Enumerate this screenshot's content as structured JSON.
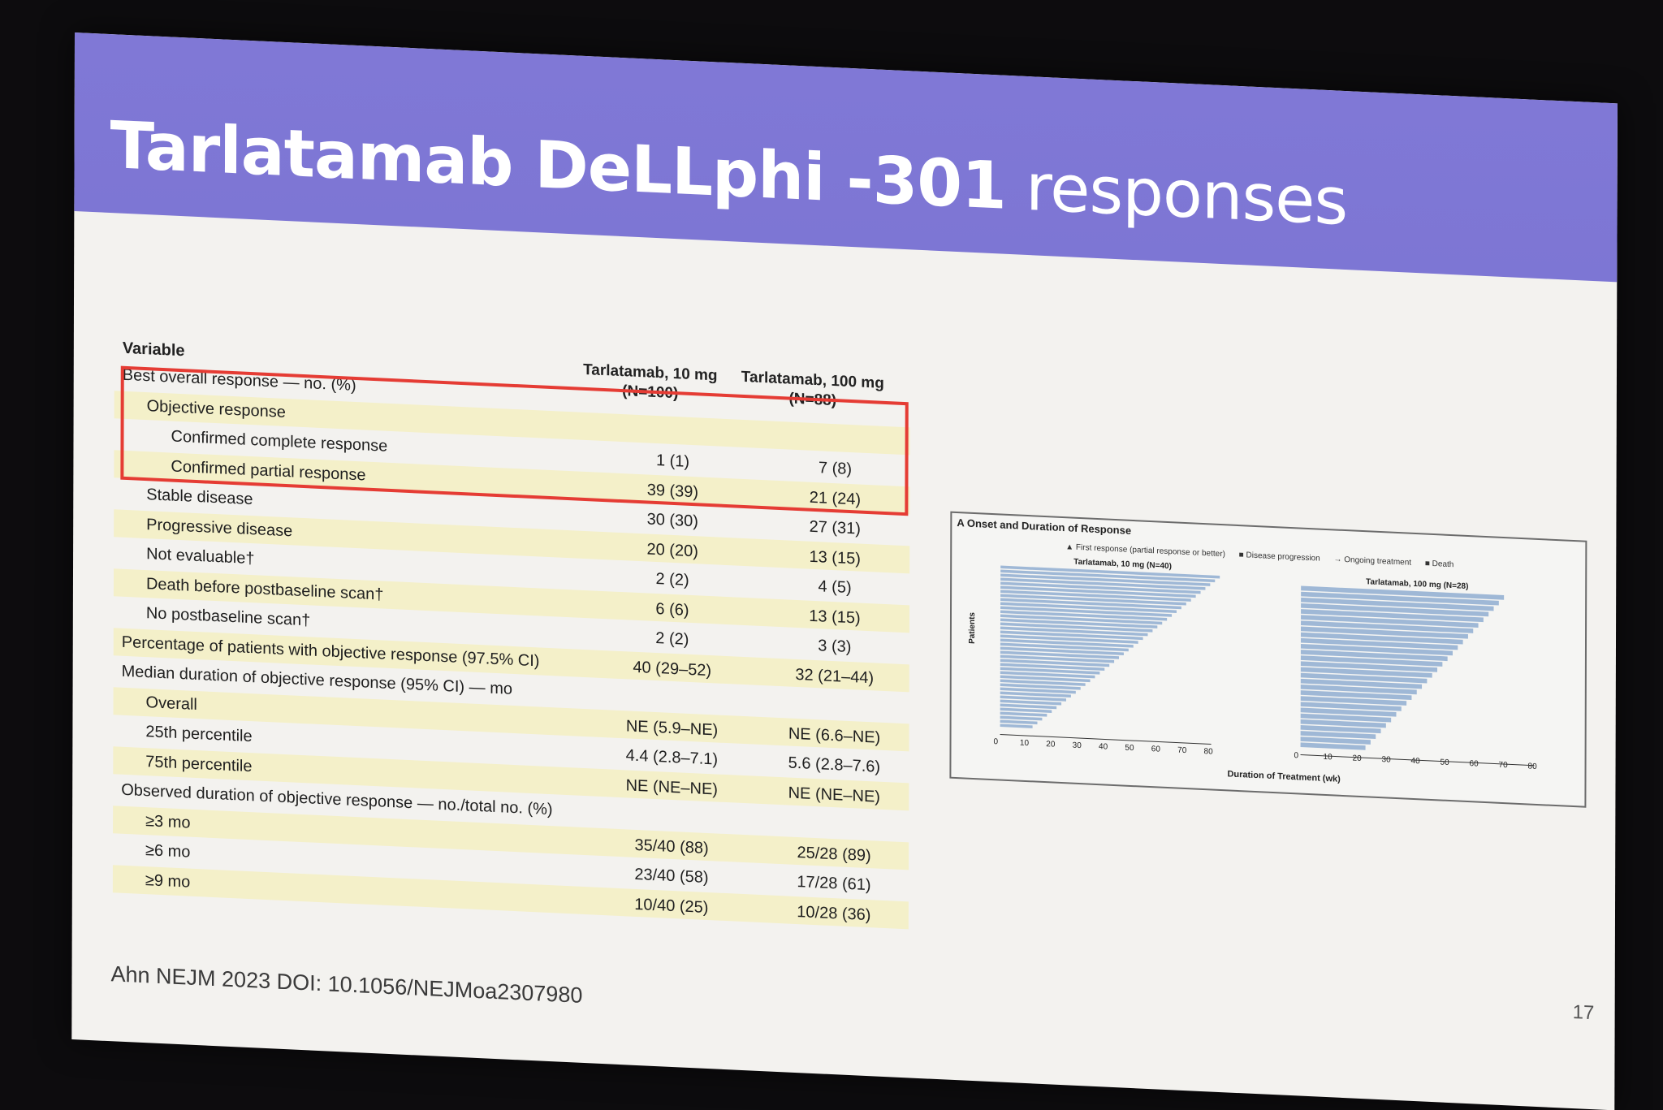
{
  "slide": {
    "title_bold": "Tarlatamab DeLLphi -301",
    "title_rest": " responses",
    "page_number": "17",
    "footer": "Ahn NEJM 2023 DOI: 10.1056/NEJMoa2307980",
    "colors": {
      "title_bar": "#7f78d5",
      "highlight_box": "#e53c34",
      "row_shade": "#f4f0c9",
      "bar": "#9fb8d6"
    }
  },
  "table": {
    "variable_header": "Variable",
    "col1_header": "Tarlatamab, 10 mg",
    "col1_n": "(N=100)",
    "col2_header": "Tarlatamab, 100 mg",
    "col2_n": "(N=88)",
    "rows": [
      {
        "label": "Best overall response — no. (%)",
        "v1": "",
        "v2": ""
      },
      {
        "label": "Objective response",
        "v1": "",
        "v2": ""
      },
      {
        "label": "Confirmed complete response",
        "v1": "1 (1)",
        "v2": "7 (8)"
      },
      {
        "label": "Confirmed partial response",
        "v1": "39 (39)",
        "v2": "21 (24)"
      },
      {
        "label": "Stable disease",
        "v1": "30 (30)",
        "v2": "27 (31)"
      },
      {
        "label": "Progressive disease",
        "v1": "20 (20)",
        "v2": "13 (15)"
      },
      {
        "label": "Not evaluable†",
        "v1": "2 (2)",
        "v2": "4 (5)"
      },
      {
        "label": "Death before postbaseline scan†",
        "v1": "6 (6)",
        "v2": "13 (15)"
      },
      {
        "label": "No postbaseline scan†",
        "v1": "2 (2)",
        "v2": "3 (3)"
      },
      {
        "label": "Percentage of patients with objective response (97.5% CI)",
        "v1": "40 (29–52)",
        "v2": "32 (21–44)"
      },
      {
        "label": "Median duration of objective response (95% CI) — mo",
        "v1": "",
        "v2": ""
      },
      {
        "label": "Overall",
        "v1": "NE (5.9–NE)",
        "v2": "NE (6.6–NE)"
      },
      {
        "label": "25th percentile",
        "v1": "4.4 (2.8–7.1)",
        "v2": "5.6 (2.8–7.6)"
      },
      {
        "label": "75th percentile",
        "v1": "NE (NE–NE)",
        "v2": "NE (NE–NE)"
      },
      {
        "label": "Observed duration of objective response — no./total no. (%)",
        "v1": "",
        "v2": ""
      },
      {
        "label": "≥3 mo",
        "v1": "35/40 (88)",
        "v2": "25/28 (89)"
      },
      {
        "label": "≥6 mo",
        "v1": "23/40 (58)",
        "v2": "17/28 (61)"
      },
      {
        "label": "≥9 mo",
        "v1": "10/40 (25)",
        "v2": "10/28 (36)"
      }
    ]
  },
  "figure": {
    "title": "A  Onset and Duration of Response",
    "legend": [
      "▲ First response (partial response or better)",
      "■ Disease progression",
      "→ Ongoing treatment",
      "■ Death"
    ],
    "panel1_title": "Tarlatamab, 10 mg (N=40)",
    "panel2_title": "Tarlatamab, 100 mg (N=28)",
    "y_label": "Patients",
    "x_label": "Duration of Treatment (wk)",
    "x_ticks": [
      "0",
      "10",
      "20",
      "30",
      "40",
      "50",
      "60",
      "70",
      "80"
    ]
  }
}
